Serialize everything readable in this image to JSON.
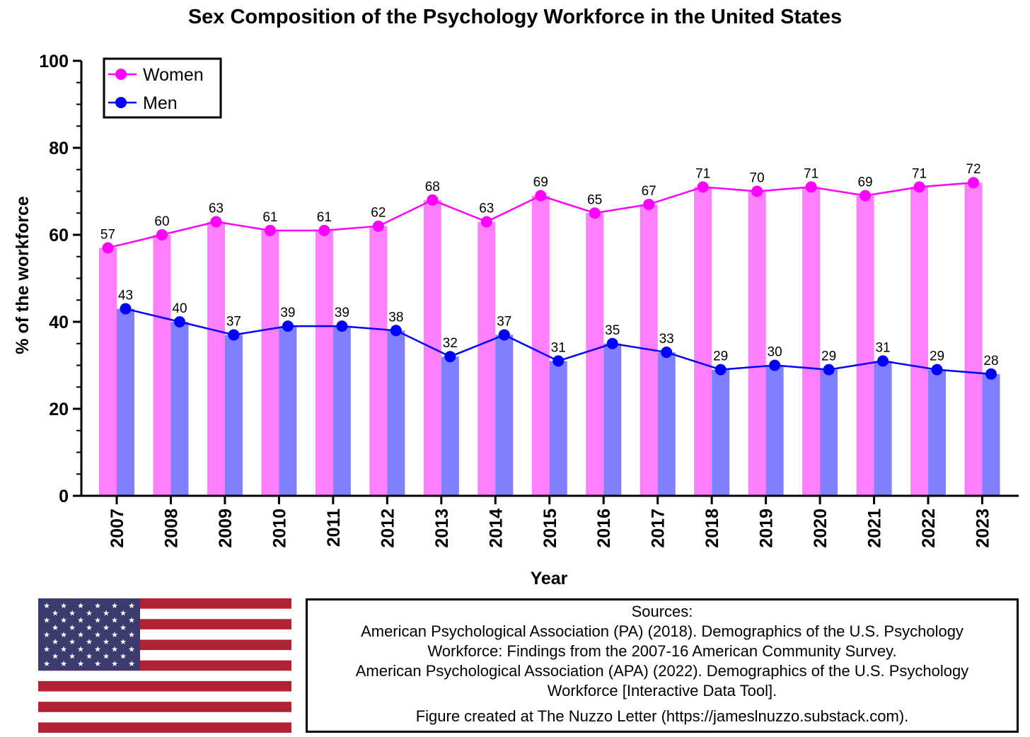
{
  "chart_data": {
    "type": "bar",
    "title": "Sex Composition of the Psychology Workforce in the United States",
    "xlabel": "Year",
    "ylabel": "% of the workforce",
    "ylim": [
      0,
      100
    ],
    "yticks": [
      0,
      20,
      40,
      60,
      80,
      100
    ],
    "categories": [
      "2007",
      "2008",
      "2009",
      "2010",
      "2011",
      "2012",
      "2013",
      "2014",
      "2015",
      "2016",
      "2017",
      "2018",
      "2019",
      "2020",
      "2021",
      "2022",
      "2023"
    ],
    "series": [
      {
        "name": "Women",
        "values": [
          57,
          60,
          63,
          61,
          61,
          62,
          68,
          63,
          69,
          65,
          67,
          71,
          70,
          71,
          69,
          71,
          72
        ],
        "bar_color": "#ff80ff",
        "line_color": "#ff00ff"
      },
      {
        "name": "Men",
        "values": [
          43,
          40,
          37,
          39,
          39,
          38,
          32,
          37,
          31,
          35,
          33,
          29,
          30,
          29,
          31,
          29,
          28
        ],
        "bar_color": "#8080ff",
        "line_color": "#0000ff"
      }
    ],
    "legend_position": "top-left",
    "grid": false
  },
  "sources": {
    "heading": "Sources:",
    "lines": [
      "American Psychological Association (PA) (2018). Demographics of the U.S. Psychology",
      "Workforce: Findings from the 2007-16 American Community Survey.",
      "American Psychological Association (APA) (2022). Demographics of the U.S. Psychology",
      "Workforce [Interactive Data Tool]."
    ],
    "credit": "Figure created at The Nuzzo Letter (https://jameslnuzzo.substack.com)."
  },
  "flag": {
    "name": "united-states-flag",
    "red": "#b22234",
    "blue": "#3c3b6e",
    "white": "#ffffff"
  }
}
